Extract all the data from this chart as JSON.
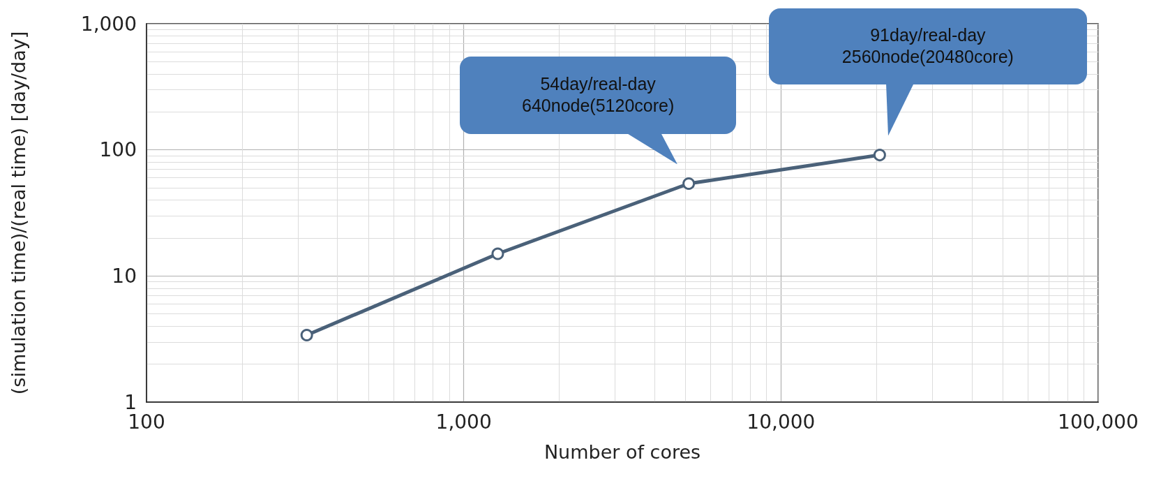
{
  "chart_data": {
    "type": "line",
    "xlabel": "Number of cores",
    "ylabel": "(simulation time)/(real time) [day/day]",
    "x": [
      320,
      1280,
      5120,
      20480
    ],
    "series": [
      {
        "color": "#4a6179",
        "values": [
          3.4,
          15,
          54,
          91
        ]
      }
    ],
    "log": "xy",
    "xlim": [
      100,
      100000
    ],
    "ylim": [
      1,
      1000
    ],
    "xticks": [
      {
        "value": 100,
        "label": "100"
      },
      {
        "value": 1000,
        "label": "1,000"
      },
      {
        "value": 10000,
        "label": "10,000"
      },
      {
        "value": 100000,
        "label": "100,000"
      }
    ],
    "yticks": [
      {
        "value": 1,
        "label": "1"
      },
      {
        "value": 10,
        "label": "10"
      },
      {
        "value": 100,
        "label": "100"
      },
      {
        "value": 1000,
        "label": "1,000"
      }
    ],
    "grid": true,
    "marker": "circle",
    "line_style": "solid",
    "annotations": [
      "54day/real-day\n640node(5120core)",
      "91day/real-day\n2560node(20480core)"
    ]
  }
}
